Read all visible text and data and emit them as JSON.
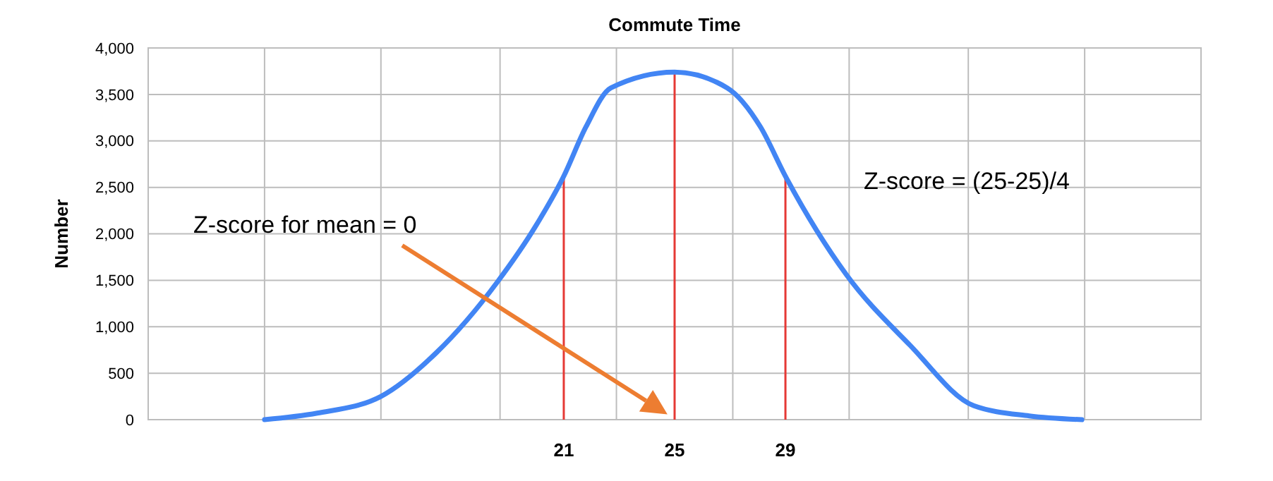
{
  "chart_data": {
    "type": "line",
    "title": "Commute Time",
    "ylabel": "Number",
    "x": [
      10.2,
      12.1,
      14.4,
      16.4,
      18.6,
      20.0,
      21,
      21.8,
      22.7,
      25,
      26.9,
      28.1,
      29,
      31.2,
      33.5,
      35.8,
      37.8,
      39.7
    ],
    "series": [
      {
        "color": "#4285f4",
        "values": [
          0,
          70,
          250,
          720,
          1480,
          2090,
          2620,
          3150,
          3570,
          3740,
          3570,
          3150,
          2620,
          1560,
          800,
          150,
          40,
          0
        ]
      }
    ],
    "xlim": [
      6,
      44
    ],
    "xticks": [
      {
        "value": 10.2,
        "label": null
      },
      {
        "value": 14.4,
        "label": null
      },
      {
        "value": 18.7,
        "label": null
      },
      21,
      {
        "value": 22.9,
        "label": null
      },
      25,
      {
        "value": 27.1,
        "label": null
      },
      29,
      {
        "value": 31.3,
        "label": null
      },
      {
        "value": 35.6,
        "label": null
      },
      {
        "value": 39.8,
        "label": null
      }
    ],
    "ylim": [
      0,
      4000
    ],
    "yticks": [
      0,
      500,
      {
        "value": 1000,
        "label": "1,000"
      },
      {
        "value": 1500,
        "label": "1,500"
      },
      {
        "value": 2000,
        "label": "2,000"
      },
      {
        "value": 2500,
        "label": "2,500"
      },
      {
        "value": 3000,
        "label": "3,000"
      },
      {
        "value": 3500,
        "label": "3,500"
      },
      {
        "value": 4000,
        "label": "4,000"
      }
    ],
    "grid": true,
    "marker": "none",
    "line_style": "solid",
    "ref_lines": [
      {
        "axis": "x",
        "value": 21,
        "color": "#e53935"
      },
      {
        "axis": "x",
        "value": 25,
        "color": "#e53935"
      },
      {
        "axis": "x",
        "value": 29,
        "color": "#e53935"
      }
    ],
    "annotations": [
      "Z-score for mean = 0",
      "Z-score = (25-25)/4"
    ]
  }
}
